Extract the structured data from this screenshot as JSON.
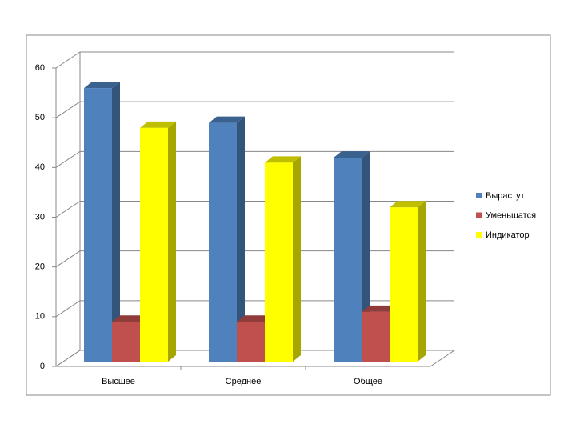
{
  "chart_data": {
    "type": "bar3d",
    "categories": [
      "Высшее",
      "Среднее",
      "Общее"
    ],
    "series": [
      {
        "name": "Вырастут",
        "color": "#4f81bd",
        "values": [
          55,
          48,
          41
        ]
      },
      {
        "name": "Уменьшатся",
        "color": "#c0504d",
        "values": [
          8,
          8,
          10
        ]
      },
      {
        "name": "Индикатор",
        "color": "#ffff00",
        "values": [
          47,
          40,
          31
        ]
      }
    ],
    "ylim": [
      0,
      60
    ],
    "yticks": [
      0,
      10,
      20,
      30,
      40,
      50,
      60
    ],
    "grid": true,
    "legend": "right"
  }
}
